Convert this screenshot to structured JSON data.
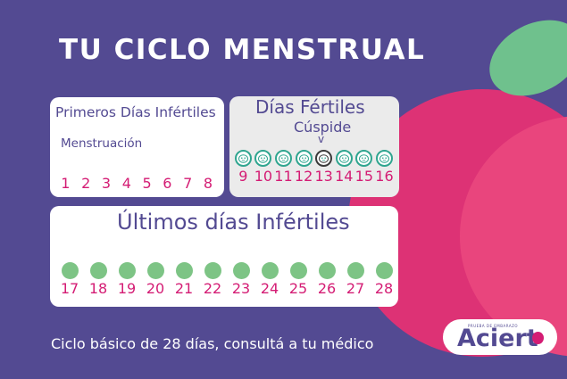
{
  "title": "TU CICLO MENSTRUAL",
  "colors": {
    "background": "#534a92",
    "panel": "#ffffff",
    "fertile_panel": "#ebebeb",
    "menstruation_dot": "#d12c39",
    "infertile_dot": "#7dc485",
    "fertile_ring": "#2fa58f",
    "day_number": "#d41c74",
    "apple": "#e0357a",
    "leaf": "#6fc18d"
  },
  "first_infertile": {
    "heading": "Primeros Días Infértiles",
    "subheading": "Menstruación",
    "days": [
      {
        "n": "1",
        "kind": "menstruation"
      },
      {
        "n": "2",
        "kind": "menstruation"
      },
      {
        "n": "3",
        "kind": "menstruation"
      },
      {
        "n": "4",
        "kind": "menstruation"
      },
      {
        "n": "5",
        "kind": "menstruation"
      },
      {
        "n": "6",
        "kind": "infertile"
      },
      {
        "n": "7",
        "kind": "infertile"
      },
      {
        "n": "8",
        "kind": "infertile"
      }
    ]
  },
  "fertile": {
    "heading": "Días Fértiles",
    "subheading": "Cúspide",
    "arrow_glyph": "v",
    "icon": "egg-face-icon",
    "days": [
      {
        "n": "9",
        "kind": "fertile"
      },
      {
        "n": "10",
        "kind": "fertile"
      },
      {
        "n": "11",
        "kind": "fertile"
      },
      {
        "n": "12",
        "kind": "fertile"
      },
      {
        "n": "13",
        "kind": "peak"
      },
      {
        "n": "14",
        "kind": "fertile"
      },
      {
        "n": "15",
        "kind": "fertile"
      },
      {
        "n": "16",
        "kind": "fertile"
      }
    ]
  },
  "last_infertile": {
    "heading": "Últimos días Infértiles",
    "days": [
      {
        "n": "17"
      },
      {
        "n": "18"
      },
      {
        "n": "19"
      },
      {
        "n": "20"
      },
      {
        "n": "21"
      },
      {
        "n": "22"
      },
      {
        "n": "23"
      },
      {
        "n": "24"
      },
      {
        "n": "25"
      },
      {
        "n": "26"
      },
      {
        "n": "27"
      },
      {
        "n": "28"
      }
    ]
  },
  "footer": "Ciclo básico de 28 días, consultá a tu médico",
  "logo": {
    "tagline": "PRUEBA DE EMBARAZO",
    "word": "Aciert",
    "icon": "apple-icon"
  }
}
